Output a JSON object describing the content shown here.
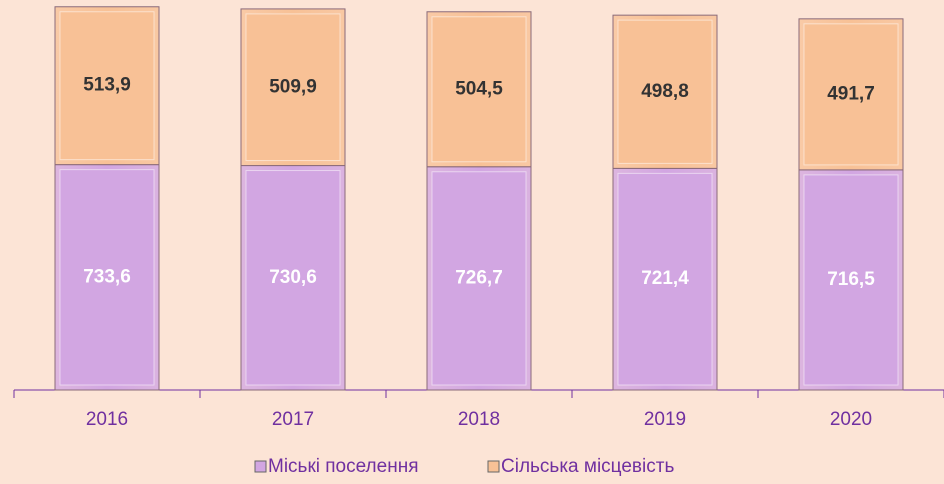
{
  "chart_data": {
    "type": "stacked-bar",
    "categories": [
      "2016",
      "2017",
      "2018",
      "2019",
      "2020"
    ],
    "series": [
      {
        "name": "Міські поселення",
        "color": "#d2a6e2",
        "values": [
          733.6,
          730.6,
          726.7,
          721.4,
          716.5
        ],
        "value_labels": [
          "733,6",
          "730,6",
          "726,7",
          "721,4",
          "716,5"
        ]
      },
      {
        "name": "Сільська місцевість",
        "color": "#f8c196",
        "values": [
          513.9,
          509.9,
          504.5,
          498.8,
          491.7
        ],
        "value_labels": [
          "513,9",
          "509,9",
          "504,5",
          "498,8",
          "491,7"
        ]
      }
    ],
    "ylim": [
      0,
      1250
    ],
    "legend": "bottom"
  }
}
